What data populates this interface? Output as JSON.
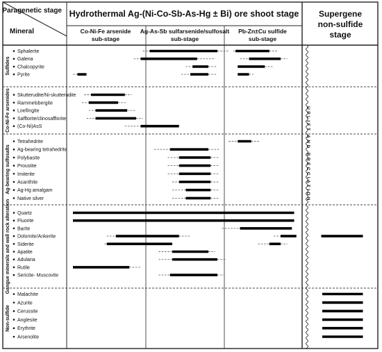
{
  "header": {
    "paragenetic_stage_label": "Paragenetic stage",
    "mineral_label": "Mineral",
    "hydrothermal_title": "Hydrothermal Ag-(Ni-Co-Sb-As-Hg ± Bi) ore shoot stage",
    "supergene_title": [
      "Supergene",
      "non-sulfide",
      "stage"
    ],
    "substages": [
      {
        "line1": "Co-Ni-Fe arsenide",
        "line2": "sub-stage"
      },
      {
        "line1": "Ag-As-Sb sulfarsenide/sulfosalt",
        "line2": "sub-stage"
      },
      {
        "line1": "Pb-Zn±Cu sulfide",
        "line2": "sub-stage"
      }
    ]
  },
  "uplift_label": "UPLIFT AND BRECCIATION",
  "chart_data": {
    "type": "paragenetic_sequence",
    "columns": [
      "Co-Ni-Fe arsenide sub-stage",
      "Ag-As-Sb sulfarsenide/sulfosalt sub-stage",
      "Pb-Zn±Cu sulfide sub-stage",
      "Supergene non-sulfide stage"
    ],
    "time_axis_note": "x values are relative fractions of the hydrothermal stage (0 = start, 1 = end); supergene bars span the supergene column",
    "groups": [
      {
        "name": "Sulfides",
        "minerals": [
          {
            "name": "Sphalerite",
            "dash_start": 0.31,
            "start": 0.34,
            "end": 0.64,
            "dash_end": 0.69
          },
          {
            "name": "Sphalerite",
            "dash_start": 0.71,
            "start": 0.72,
            "end": 0.87,
            "dash_end": 0.91
          },
          {
            "name": "Galena",
            "dash_start": 0.27,
            "start": 0.3,
            "end": 0.55,
            "dash_end": 0.63
          },
          {
            "name": "Galena",
            "dash_start": 0.74,
            "start": 0.78,
            "end": 0.92,
            "dash_end": 0.95
          },
          {
            "name": "Chalcopyrite",
            "dash_start": 0.5,
            "start": 0.53,
            "end": 0.6,
            "dash_end": 0.64
          },
          {
            "name": "Chalcopyrite",
            "start": 0.73,
            "end": 0.85,
            "dash_end": 0.89
          },
          {
            "name": "Pyrite",
            "dash_start": 0.0,
            "start": 0.02,
            "end": 0.06
          },
          {
            "name": "Pyrite",
            "dash_start": 0.48,
            "start": 0.52,
            "end": 0.6,
            "dash_end": 0.64
          },
          {
            "name": "Pyrite",
            "start": 0.73,
            "end": 0.78,
            "dash_end": 0.8
          }
        ]
      },
      {
        "name": "Co-Ni-Fe arsenides",
        "minerals": [
          {
            "name": "Skutterudite/Ni-skutterudite",
            "dash_start": 0.05,
            "start": 0.08,
            "end": 0.23,
            "dash_end": 0.26
          },
          {
            "name": "Rammelsbergite",
            "dash_start": 0.04,
            "start": 0.07,
            "end": 0.2,
            "dash_end": 0.24
          },
          {
            "name": "Loellingite",
            "dash_start": 0.07,
            "start": 0.1,
            "end": 0.24,
            "dash_end": 0.28
          },
          {
            "name": "Safflorite/clinosafflorite",
            "dash_start": 0.06,
            "start": 0.1,
            "end": 0.28,
            "dash_end": 0.31
          },
          {
            "name": "(Co-Ni)AsS",
            "dash_start": 0.23,
            "start": 0.3,
            "end": 0.47
          }
        ]
      },
      {
        "name": "Ag-bearing sulfosalts",
        "minerals": [
          {
            "name": "Tetrahedrite",
            "dash_start": 0.69,
            "start": 0.73,
            "end": 0.79,
            "dash_end": 0.83
          },
          {
            "name": "Ag-bearing tetrahedrite",
            "dash_start": 0.36,
            "start": 0.43,
            "end": 0.6,
            "dash_end": 0.65
          },
          {
            "name": "Polybasite",
            "dash_start": 0.42,
            "start": 0.47,
            "end": 0.61,
            "dash_end": 0.65
          },
          {
            "name": "Proustite",
            "dash_start": 0.42,
            "start": 0.47,
            "end": 0.61,
            "dash_end": 0.65
          },
          {
            "name": "Imiterite",
            "dash_start": 0.42,
            "start": 0.47,
            "end": 0.61,
            "dash_end": 0.65
          },
          {
            "name": "Acanthite",
            "dash_start": 0.44,
            "start": 0.47,
            "end": 0.61,
            "dash_end": 0.65
          },
          {
            "name": "Ag-Hg amalgam",
            "dash_start": 0.44,
            "start": 0.5,
            "end": 0.61,
            "dash_end": 0.65
          },
          {
            "name": "Native silver",
            "dash_start": 0.44,
            "start": 0.5,
            "end": 0.61,
            "dash_end": 0.65
          }
        ]
      },
      {
        "name": "Gangue minerals and wall rock alteration",
        "minerals": [
          {
            "name": "Quartz",
            "start": 0.0,
            "end": 0.98
          },
          {
            "name": "Fluorite",
            "start": 0.0,
            "end": 0.98
          },
          {
            "name": "Barite",
            "dash_start": 0.66,
            "start": 0.74,
            "end": 0.97
          },
          {
            "name": "Dolomite/Ankerite",
            "dash_start": 0.15,
            "start": 0.19,
            "end": 0.47,
            "dash_end": 0.52
          },
          {
            "name": "Dolomite/Ankerite",
            "dash_start": 0.89,
            "start": 0.92,
            "end": 0.99
          },
          {
            "name": "Dolomite/Ankerite",
            "supergene": true,
            "start": 0.1,
            "end": 0.9
          },
          {
            "name": "Siderite",
            "dash_start": 0.14,
            "start": 0.15,
            "end": 0.44
          },
          {
            "name": "Siderite",
            "dash_start": 0.82,
            "start": 0.87,
            "end": 0.92,
            "dash_end": 0.95
          },
          {
            "name": "Apatite",
            "dash_start": 0.38,
            "start": 0.44,
            "end": 0.6,
            "dash_end": 0.63
          },
          {
            "name": "Adularia",
            "dash_start": 0.38,
            "start": 0.44,
            "end": 0.64,
            "dash_end": 0.68
          },
          {
            "name": "Rutile",
            "start": 0.0,
            "end": 0.25,
            "dash_end": 0.3
          },
          {
            "name": "Sericite- Muscovite",
            "dash_start": 0.38,
            "start": 0.43,
            "end": 0.64,
            "dash_end": 0.67
          }
        ]
      },
      {
        "name": "Non-sulfide",
        "minerals": [
          {
            "name": "Malachite",
            "supergene": true,
            "start": 0.12,
            "end": 0.9
          },
          {
            "name": "Azurite",
            "supergene": true,
            "start": 0.12,
            "end": 0.9
          },
          {
            "name": "Cerussite",
            "supergene": true,
            "start": 0.12,
            "end": 0.9
          },
          {
            "name": "Anglesite",
            "supergene": true,
            "start": 0.12,
            "end": 0.9
          },
          {
            "name": "Erythrite",
            "supergene": true,
            "start": 0.12,
            "end": 0.9
          },
          {
            "name": "Arsenolite",
            "supergene": true,
            "start": 0.12,
            "end": 0.9
          }
        ]
      }
    ]
  }
}
